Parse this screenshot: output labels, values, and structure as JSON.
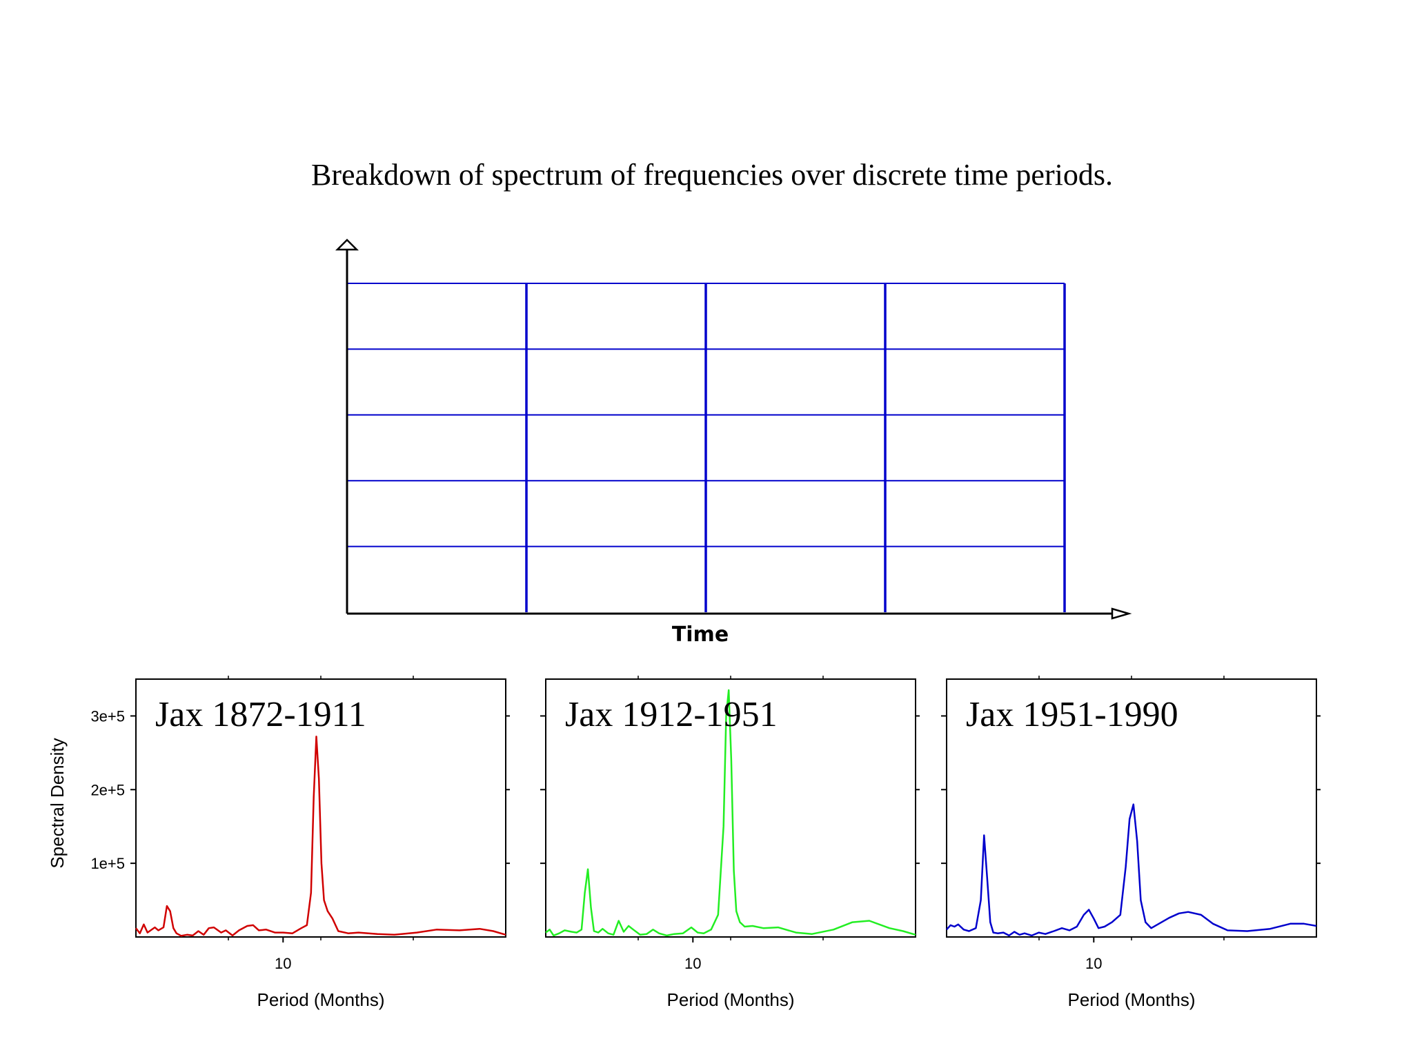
{
  "title": "Breakdown of spectrum of frequencies over discrete time periods.",
  "diagram": {
    "x_axis_label": "Time",
    "columns": 4,
    "rows": 5,
    "grid_color": "#0000cc"
  },
  "chart_data": [
    {
      "type": "line",
      "panel_label": "Jax 1872-1911",
      "color": "#d00000",
      "xlabel": "Period (Months)",
      "ylabel": "Spectral Density",
      "x_scale": "log",
      "xlim": [
        4,
        40
      ],
      "ylim": [
        0,
        350000
      ],
      "x_ticks": [
        10
      ],
      "x_tick_labels": [
        "10"
      ],
      "y_ticks": [
        100000,
        200000,
        300000
      ],
      "y_tick_labels": [
        "1e+5",
        "2e+5",
        "3e+5"
      ],
      "series": [
        {
          "x": [
            4.0,
            4.1,
            4.2,
            4.3,
            4.5,
            4.6,
            4.75,
            4.85,
            4.95,
            5.05,
            5.15,
            5.3,
            5.5,
            5.7,
            5.9,
            6.1,
            6.3,
            6.5,
            6.8,
            7.0,
            7.3,
            7.6,
            8.0,
            8.3,
            8.6,
            9.0,
            9.5,
            10.0,
            10.6,
            11.2,
            11.6,
            11.9,
            12.1,
            12.3,
            12.5,
            12.7,
            12.9,
            13.2,
            13.6,
            14.1,
            15.0,
            16.0,
            18.0,
            20.0,
            23.0,
            26.0,
            30.0,
            34.0,
            37.0,
            40.0
          ],
          "y": [
            12000,
            5000,
            17000,
            6000,
            13000,
            9000,
            13000,
            42000,
            35000,
            12000,
            5000,
            1500,
            3000,
            2000,
            8000,
            3000,
            12000,
            13000,
            6000,
            9000,
            2000,
            9000,
            15000,
            16000,
            9000,
            10000,
            6000,
            6000,
            5000,
            12000,
            16000,
            60000,
            190000,
            272000,
            215000,
            100000,
            50000,
            35000,
            25000,
            8000,
            5000,
            6000,
            4000,
            3000,
            6000,
            10000,
            9000,
            11000,
            8000,
            3000
          ]
        }
      ]
    },
    {
      "type": "line",
      "panel_label": "Jax 1912-1951",
      "color": "#22ee22",
      "xlabel": "Period (Months)",
      "x_scale": "log",
      "xlim": [
        4,
        40
      ],
      "ylim": [
        0,
        350000
      ],
      "x_ticks": [
        10
      ],
      "x_tick_labels": [
        "10"
      ],
      "series": [
        {
          "x": [
            4.0,
            4.1,
            4.2,
            4.35,
            4.5,
            4.7,
            4.85,
            5.0,
            5.1,
            5.2,
            5.3,
            5.4,
            5.55,
            5.7,
            5.9,
            6.1,
            6.3,
            6.5,
            6.7,
            6.9,
            7.2,
            7.5,
            7.8,
            8.1,
            8.5,
            8.9,
            9.4,
            9.9,
            10.3,
            10.7,
            11.2,
            11.7,
            12.1,
            12.3,
            12.5,
            12.7,
            12.9,
            13.1,
            13.4,
            13.8,
            14.5,
            15.5,
            17.0,
            19.0,
            21.0,
            24.0,
            27.0,
            30.0,
            34.0,
            37.0,
            40.0
          ],
          "y": [
            6000,
            10000,
            2000,
            5000,
            9000,
            7000,
            6000,
            10000,
            60000,
            92000,
            40000,
            8000,
            6000,
            11000,
            5000,
            3000,
            22000,
            7000,
            15000,
            10000,
            3000,
            4000,
            10000,
            5000,
            2000,
            4000,
            5000,
            13000,
            6000,
            5000,
            10000,
            30000,
            150000,
            300000,
            335000,
            240000,
            90000,
            35000,
            20000,
            14000,
            15000,
            12000,
            13000,
            6000,
            4000,
            10000,
            20000,
            22000,
            12000,
            8000,
            3000
          ]
        }
      ]
    },
    {
      "type": "line",
      "panel_label": "Jax 1951-1990",
      "color": "#0000cc",
      "xlabel": "Period (Months)",
      "x_scale": "log",
      "xlim": [
        4,
        40
      ],
      "ylim": [
        0,
        350000
      ],
      "x_ticks": [
        10
      ],
      "x_tick_labels": [
        "10"
      ],
      "series": [
        {
          "x": [
            4.0,
            4.1,
            4.2,
            4.3,
            4.45,
            4.6,
            4.8,
            4.95,
            5.05,
            5.15,
            5.25,
            5.35,
            5.5,
            5.7,
            5.9,
            6.1,
            6.3,
            6.5,
            6.8,
            7.1,
            7.4,
            7.8,
            8.2,
            8.6,
            9.0,
            9.4,
            9.7,
            10.0,
            10.3,
            10.7,
            11.2,
            11.8,
            12.2,
            12.5,
            12.8,
            13.1,
            13.4,
            13.8,
            14.3,
            15.0,
            16.0,
            17.0,
            18.0,
            19.5,
            21.0,
            23.0,
            26.0,
            30.0,
            34.0,
            37.0,
            40.0
          ],
          "y": [
            10000,
            16000,
            14000,
            17000,
            10000,
            8000,
            12000,
            50000,
            138000,
            80000,
            20000,
            6000,
            5000,
            6000,
            2000,
            7000,
            3000,
            5000,
            2000,
            6000,
            4000,
            8000,
            12000,
            9000,
            14000,
            30000,
            37000,
            25000,
            12000,
            14000,
            20000,
            30000,
            95000,
            160000,
            180000,
            130000,
            50000,
            20000,
            12000,
            18000,
            26000,
            32000,
            34000,
            30000,
            18000,
            9000,
            8000,
            11000,
            18000,
            18000,
            15000
          ]
        }
      ]
    }
  ]
}
